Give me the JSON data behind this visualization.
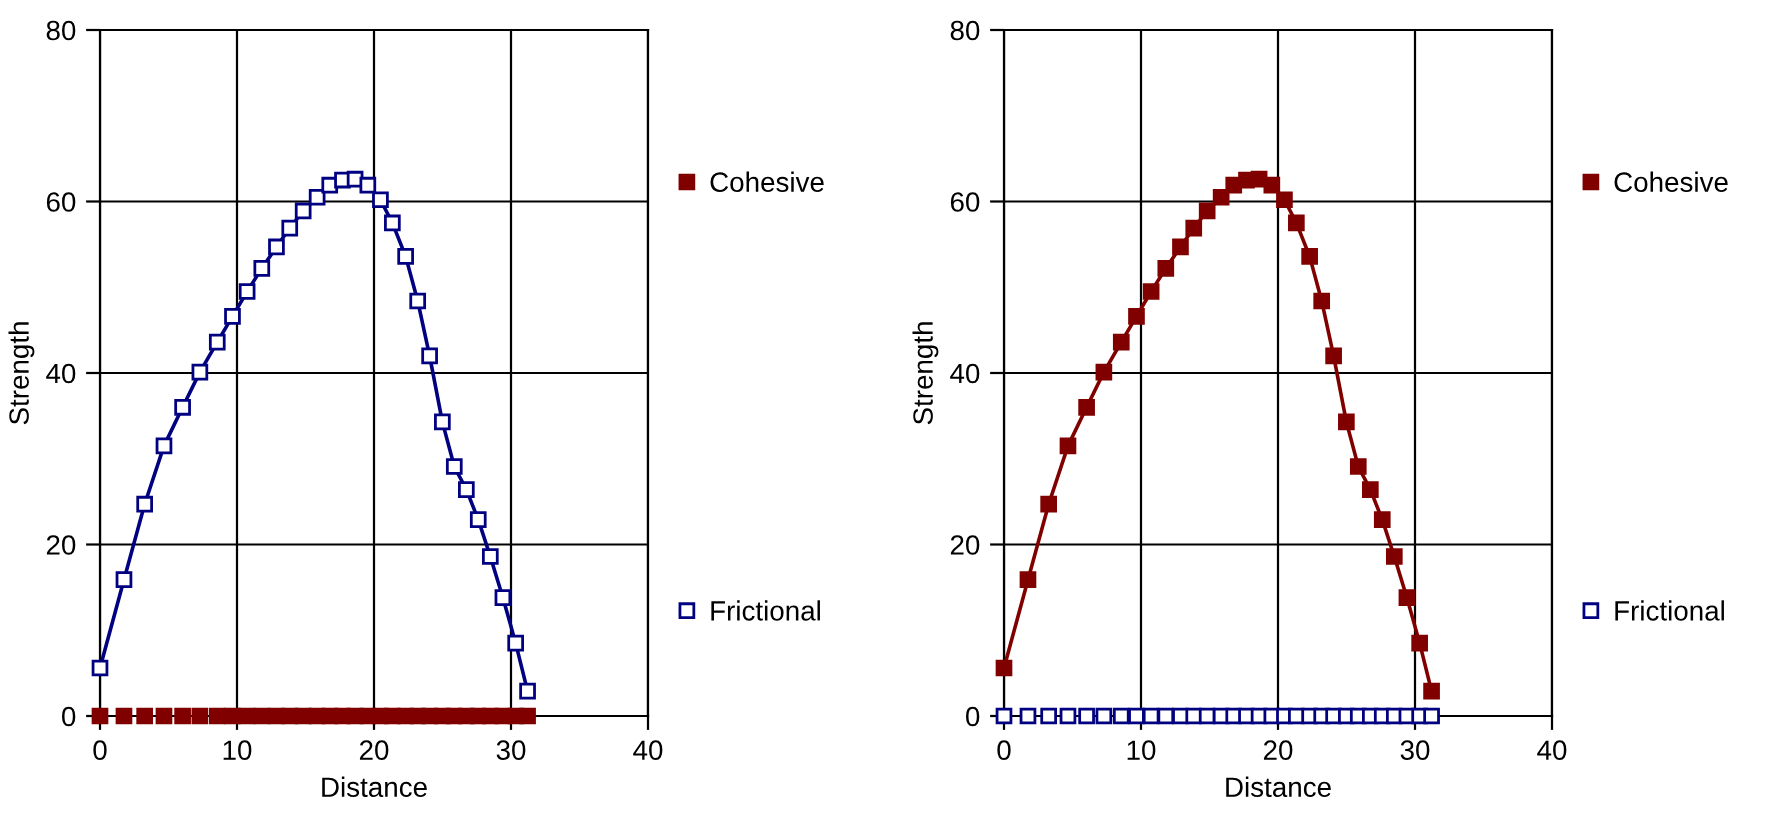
{
  "chart_data": [
    {
      "type": "line",
      "xlabel": "Distance",
      "ylabel": "Strength",
      "xlim": [
        0,
        40
      ],
      "ylim": [
        0,
        80
      ],
      "xticks": [
        0,
        10,
        20,
        30,
        40
      ],
      "yticks": [
        0,
        20,
        40,
        60,
        80
      ],
      "grid": true,
      "legend": "right",
      "marker": "square",
      "x": [
        0,
        1.75,
        3.26,
        4.67,
        6.03,
        7.29,
        8.56,
        9.67,
        10.74,
        11.81,
        12.88,
        13.85,
        14.83,
        15.85,
        16.77,
        17.7,
        18.62,
        19.55,
        20.47,
        21.34,
        22.31,
        23.19,
        24.06,
        24.99,
        25.86,
        26.74,
        27.61,
        28.49,
        29.41,
        30.34,
        31.21
      ],
      "series": [
        {
          "name": "Cohesive",
          "type": "scatter",
          "color": "#800000",
          "values": [
            0,
            0,
            0,
            0,
            0,
            0,
            0,
            0,
            0,
            0,
            0,
            0,
            0,
            0,
            0,
            0,
            0,
            0,
            0,
            0,
            0,
            0,
            0,
            0,
            0,
            0,
            0,
            0,
            0,
            0,
            0
          ]
        },
        {
          "name": "Frictional",
          "color": "#000080",
          "values": [
            5.6,
            15.9,
            24.7,
            31.5,
            36.0,
            40.1,
            43.6,
            46.6,
            49.5,
            52.2,
            54.7,
            56.9,
            58.9,
            60.5,
            61.9,
            62.5,
            62.6,
            61.9,
            60.2,
            57.5,
            53.6,
            48.4,
            42.0,
            34.3,
            29.1,
            26.4,
            22.9,
            18.6,
            13.8,
            8.5,
            2.9
          ]
        }
      ]
    },
    {
      "type": "line",
      "xlabel": "Distance",
      "ylabel": "Strength",
      "xlim": [
        0,
        40
      ],
      "ylim": [
        0,
        80
      ],
      "xticks": [
        0,
        10,
        20,
        30,
        40
      ],
      "yticks": [
        0,
        20,
        40,
        60,
        80
      ],
      "grid": true,
      "legend": "right",
      "marker": "square",
      "x": [
        0,
        1.75,
        3.26,
        4.67,
        6.03,
        7.29,
        8.56,
        9.67,
        10.74,
        11.81,
        12.88,
        13.85,
        14.83,
        15.85,
        16.77,
        17.7,
        18.62,
        19.55,
        20.47,
        21.34,
        22.31,
        23.19,
        24.06,
        24.99,
        25.86,
        26.74,
        27.61,
        28.49,
        29.41,
        30.34,
        31.21
      ],
      "series": [
        {
          "name": "Cohesive",
          "color": "#800000",
          "values": [
            5.6,
            15.9,
            24.7,
            31.5,
            36.0,
            40.1,
            43.6,
            46.6,
            49.5,
            52.2,
            54.7,
            56.9,
            58.9,
            60.5,
            61.9,
            62.5,
            62.6,
            61.9,
            60.2,
            57.5,
            53.6,
            48.4,
            42.0,
            34.3,
            29.1,
            26.4,
            22.9,
            18.6,
            13.8,
            8.5,
            2.9
          ]
        },
        {
          "name": "Frictional",
          "type": "scatter",
          "color": "#000080",
          "values": [
            0,
            0,
            0,
            0,
            0,
            0,
            0,
            0,
            0,
            0,
            0,
            0,
            0,
            0,
            0,
            0,
            0,
            0,
            0,
            0,
            0,
            0,
            0,
            0,
            0,
            0,
            0,
            0,
            0,
            0,
            0
          ]
        }
      ]
    }
  ]
}
